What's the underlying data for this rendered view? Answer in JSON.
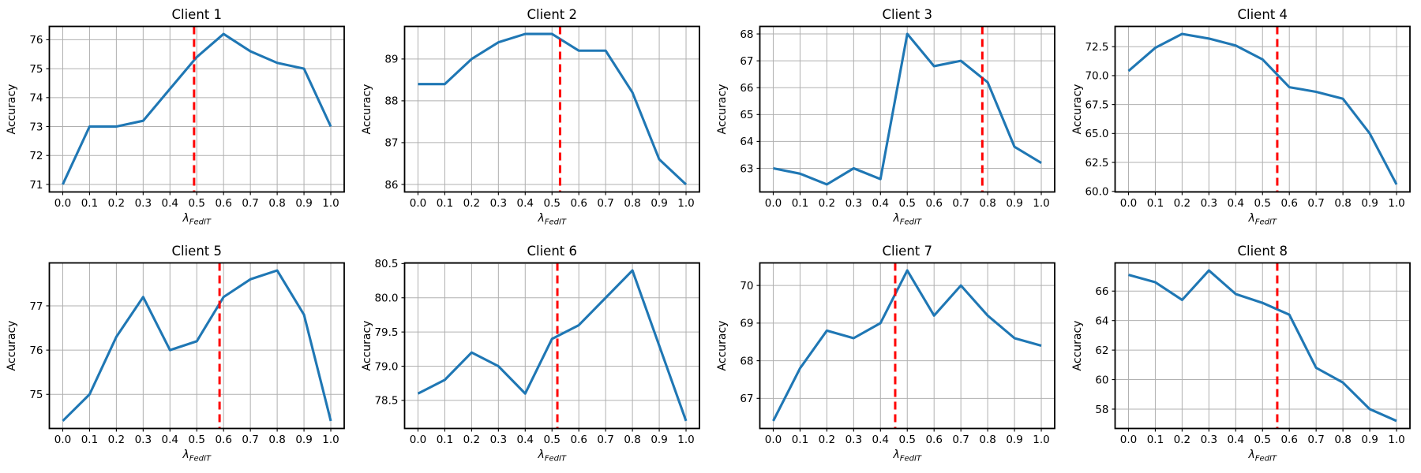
{
  "figure": {
    "background": "#ffffff",
    "line_color": "#1f77b4",
    "vline_color": "#ff0000",
    "grid_color": "#b0b0b0",
    "spine_color": "#000000",
    "ylabel": "Accuracy",
    "xlabel_lambda": "λ",
    "xlabel_subscript": "FedIT",
    "xlim": [
      -0.05,
      1.05
    ],
    "xticks": [
      0.0,
      0.1,
      0.2,
      0.3,
      0.4,
      0.5,
      0.6,
      0.7,
      0.8,
      0.9,
      1.0
    ],
    "xtick_labels": [
      "0.0",
      "0.1",
      "0.2",
      "0.3",
      "0.4",
      "0.5",
      "0.6",
      "0.7",
      "0.8",
      "0.9",
      "1.0"
    ]
  },
  "chart_data": [
    {
      "type": "line",
      "title": "Client 1",
      "xlabel": "λ_FedIT",
      "ylabel": "Accuracy",
      "x": [
        0.0,
        0.1,
        0.2,
        0.3,
        0.4,
        0.5,
        0.6,
        0.7,
        0.8,
        0.9,
        1.0
      ],
      "values": [
        71.0,
        73.0,
        73.0,
        73.2,
        74.3,
        75.4,
        76.2,
        75.6,
        75.2,
        75.0,
        73.0
      ],
      "vline_x": 0.49,
      "yticks": [
        71,
        72,
        73,
        74,
        75,
        76
      ],
      "ytick_labels": [
        "71",
        "72",
        "73",
        "74",
        "75",
        "76"
      ],
      "ylim": [
        70.74,
        76.46
      ],
      "xlim": [
        -0.05,
        1.05
      ],
      "grid": true,
      "legend": "none"
    },
    {
      "type": "line",
      "title": "Client 2",
      "xlabel": "λ_FedIT",
      "ylabel": "Accuracy",
      "x": [
        0.0,
        0.1,
        0.2,
        0.3,
        0.4,
        0.5,
        0.6,
        0.7,
        0.8,
        0.9,
        1.0
      ],
      "values": [
        88.4,
        88.4,
        89.0,
        89.4,
        89.6,
        89.6,
        89.2,
        89.2,
        88.2,
        86.6,
        86.0
      ],
      "vline_x": 0.53,
      "yticks": [
        86,
        87,
        88,
        89
      ],
      "ytick_labels": [
        "86",
        "87",
        "88",
        "89"
      ],
      "ylim": [
        85.82,
        89.78
      ],
      "xlim": [
        -0.05,
        1.05
      ],
      "grid": true,
      "legend": "none"
    },
    {
      "type": "line",
      "title": "Client 3",
      "xlabel": "λ_FedIT",
      "ylabel": "Accuracy",
      "x": [
        0.0,
        0.1,
        0.2,
        0.3,
        0.4,
        0.5,
        0.6,
        0.7,
        0.8,
        0.9,
        1.0
      ],
      "values": [
        63.0,
        62.8,
        62.4,
        63.0,
        62.6,
        68.0,
        66.8,
        67.0,
        66.2,
        63.8,
        63.2
      ],
      "vline_x": 0.78,
      "yticks": [
        63,
        64,
        65,
        66,
        67,
        68
      ],
      "ytick_labels": [
        "63",
        "64",
        "65",
        "66",
        "67",
        "68"
      ],
      "ylim": [
        62.12,
        68.28
      ],
      "xlim": [
        -0.05,
        1.05
      ],
      "grid": true,
      "legend": "none"
    },
    {
      "type": "line",
      "title": "Client 4",
      "xlabel": "λ_FedIT",
      "ylabel": "Accuracy",
      "x": [
        0.0,
        0.1,
        0.2,
        0.3,
        0.4,
        0.5,
        0.6,
        0.7,
        0.8,
        0.9,
        1.0
      ],
      "values": [
        70.4,
        72.4,
        73.6,
        73.2,
        72.6,
        71.4,
        69.0,
        68.6,
        68.0,
        65.0,
        60.6
      ],
      "vline_x": 0.555,
      "yticks": [
        60.0,
        62.5,
        65.0,
        67.5,
        70.0,
        72.5
      ],
      "ytick_labels": [
        "60.0",
        "62.5",
        "65.0",
        "67.5",
        "70.0",
        "72.5"
      ],
      "ylim": [
        59.95,
        74.25
      ],
      "xlim": [
        -0.05,
        1.05
      ],
      "grid": true,
      "legend": "none"
    },
    {
      "type": "line",
      "title": "Client 5",
      "xlabel": "λ_FedIT",
      "ylabel": "Accuracy",
      "x": [
        0.0,
        0.1,
        0.2,
        0.3,
        0.4,
        0.5,
        0.6,
        0.7,
        0.8,
        0.9,
        1.0
      ],
      "values": [
        74.4,
        75.0,
        76.3,
        77.2,
        76.0,
        76.2,
        77.2,
        77.6,
        77.8,
        76.8,
        74.4
      ],
      "vline_x": 0.585,
      "yticks": [
        75,
        76,
        77
      ],
      "ytick_labels": [
        "75",
        "76",
        "77"
      ],
      "ylim": [
        74.23,
        77.97
      ],
      "xlim": [
        -0.05,
        1.05
      ],
      "grid": true,
      "legend": "none"
    },
    {
      "type": "line",
      "title": "Client 6",
      "xlabel": "λ_FedIT",
      "ylabel": "Accuracy",
      "x": [
        0.0,
        0.1,
        0.2,
        0.3,
        0.4,
        0.5,
        0.6,
        0.7,
        0.8,
        0.9,
        1.0
      ],
      "values": [
        78.6,
        78.8,
        79.2,
        79.0,
        78.6,
        79.4,
        79.6,
        80.0,
        80.4,
        79.3,
        78.2
      ],
      "vline_x": 0.52,
      "yticks": [
        78.5,
        79.0,
        79.5,
        80.0,
        80.5
      ],
      "ytick_labels": [
        "78.5",
        "79.0",
        "79.5",
        "80.0",
        "80.5"
      ],
      "ylim": [
        78.09,
        80.51
      ],
      "xlim": [
        -0.05,
        1.05
      ],
      "grid": true,
      "legend": "none"
    },
    {
      "type": "line",
      "title": "Client 7",
      "xlabel": "λ_FedIT",
      "ylabel": "Accuracy",
      "x": [
        0.0,
        0.1,
        0.2,
        0.3,
        0.4,
        0.5,
        0.6,
        0.7,
        0.8,
        0.9,
        1.0
      ],
      "values": [
        66.4,
        67.8,
        68.8,
        68.6,
        69.0,
        70.4,
        69.2,
        70.0,
        69.2,
        68.6,
        68.4
      ],
      "vline_x": 0.455,
      "yticks": [
        67,
        68,
        69,
        70
      ],
      "ytick_labels": [
        "67",
        "68",
        "69",
        "70"
      ],
      "ylim": [
        66.2,
        70.6
      ],
      "xlim": [
        -0.05,
        1.05
      ],
      "grid": true,
      "legend": "none"
    },
    {
      "type": "line",
      "title": "Client 8",
      "xlabel": "λ_FedIT",
      "ylabel": "Accuracy",
      "x": [
        0.0,
        0.1,
        0.2,
        0.3,
        0.4,
        0.5,
        0.6,
        0.7,
        0.8,
        0.9,
        1.0
      ],
      "values": [
        67.1,
        66.6,
        65.4,
        67.4,
        65.8,
        65.2,
        64.4,
        60.8,
        59.8,
        58.0,
        57.2
      ],
      "vline_x": 0.555,
      "yticks": [
        58,
        60,
        62,
        64,
        66
      ],
      "ytick_labels": [
        "58",
        "60",
        "62",
        "64",
        "66"
      ],
      "ylim": [
        56.69,
        67.91
      ],
      "xlim": [
        -0.05,
        1.05
      ],
      "grid": true,
      "legend": "none"
    }
  ]
}
